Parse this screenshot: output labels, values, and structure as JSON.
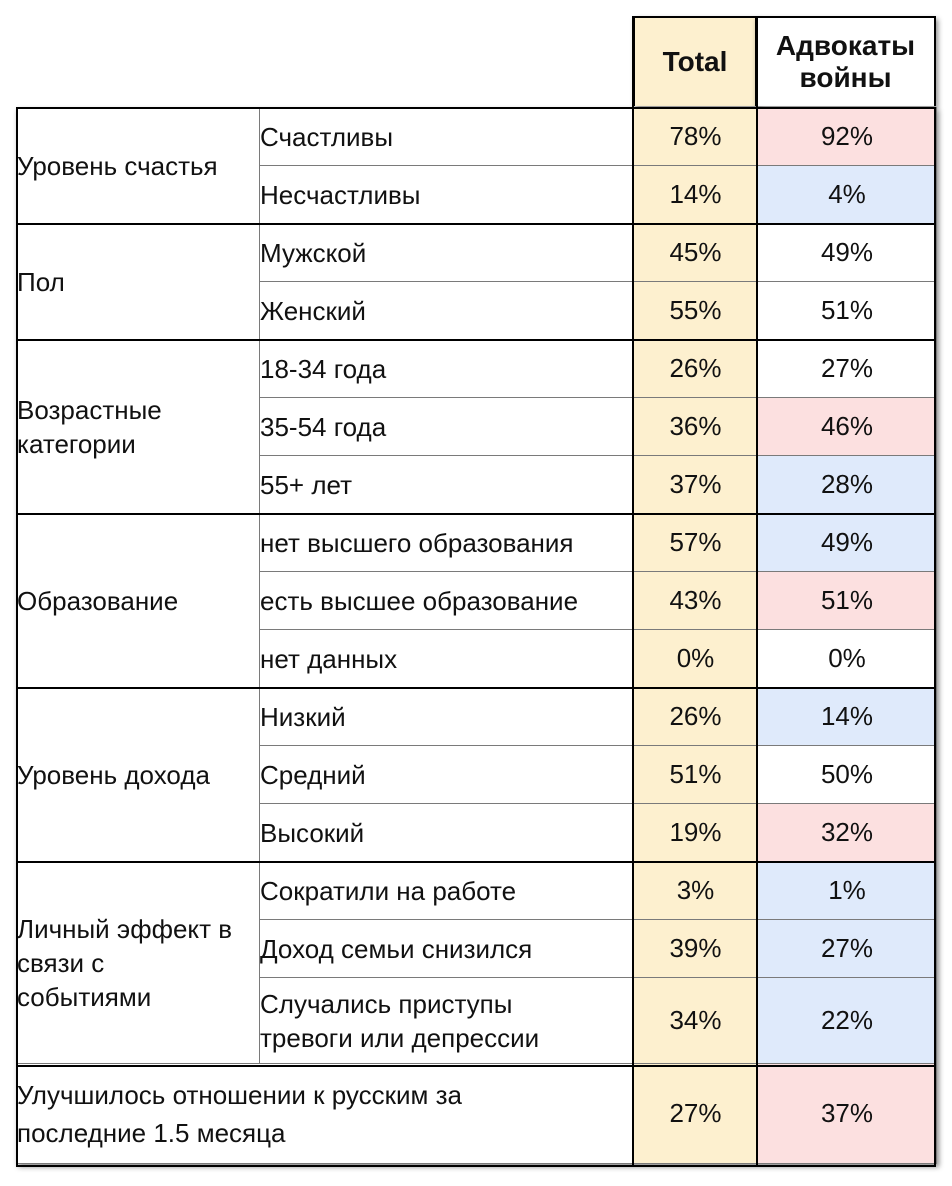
{
  "header": {
    "total": "Total",
    "advocates": "Адвокаты войны"
  },
  "groups": [
    {
      "label": "Уровень счастья",
      "rows": [
        {
          "label": "Счастливы",
          "total": "78%",
          "adv": "92%",
          "highlight": "pink"
        },
        {
          "label": "Несчастливы",
          "total": "14%",
          "adv": "4%",
          "highlight": "blue"
        }
      ]
    },
    {
      "label": "Пол",
      "rows": [
        {
          "label": "Мужской",
          "total": "45%",
          "adv": "49%",
          "highlight": "white"
        },
        {
          "label": "Женский",
          "total": "55%",
          "adv": "51%",
          "highlight": "white"
        }
      ]
    },
    {
      "label": "Возрастные категории",
      "rows": [
        {
          "label": "18-34 года",
          "total": "26%",
          "adv": "27%",
          "highlight": "white"
        },
        {
          "label": "35-54 года",
          "total": "36%",
          "adv": "46%",
          "highlight": "pink"
        },
        {
          "label": "55+ лет",
          "total": "37%",
          "adv": "28%",
          "highlight": "blue"
        }
      ]
    },
    {
      "label": "Образование",
      "rows": [
        {
          "label": "нет высшего образования",
          "total": "57%",
          "adv": "49%",
          "highlight": "blue"
        },
        {
          "label": "есть высшее образование",
          "total": "43%",
          "adv": "51%",
          "highlight": "pink"
        },
        {
          "label": "нет данных",
          "total": "0%",
          "adv": "0%",
          "highlight": "white"
        }
      ]
    },
    {
      "label": "Уровень дохода",
      "rows": [
        {
          "label": "Низкий",
          "total": "26%",
          "adv": "14%",
          "highlight": "blue"
        },
        {
          "label": "Средний",
          "total": "51%",
          "adv": "50%",
          "highlight": "white"
        },
        {
          "label": "Высокий",
          "total": "19%",
          "adv": "32%",
          "highlight": "pink"
        }
      ]
    },
    {
      "label": "Личный эффект в связи с событиями",
      "rows": [
        {
          "label": "Сократили на работе",
          "total": "3%",
          "adv": "1%",
          "highlight": "blue"
        },
        {
          "label": "Доход семьи снизился",
          "total": "39%",
          "adv": "27%",
          "highlight": "blue"
        },
        {
          "label": "Случались приступы тревоги или депрессии",
          "total": "34%",
          "adv": "22%",
          "highlight": "blue"
        }
      ]
    }
  ],
  "footer": {
    "label": "Улучшилось отношении к русским за последние 1.5 месяца",
    "total": "27%",
    "adv": "37%",
    "highlight": "pink"
  },
  "colors": {
    "total_bg": "#fdf0cf",
    "pink": "#fce0e0",
    "blue": "#dfeafb"
  }
}
